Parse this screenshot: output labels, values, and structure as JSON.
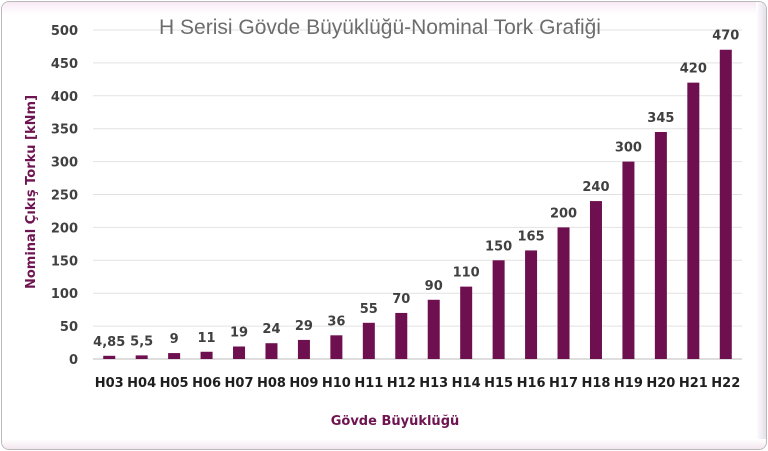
{
  "chart_data": {
    "type": "bar",
    "title": "H Serisi Gövde Büyüklüğü-Nominal Tork Grafiği",
    "xlabel": "Gövde Büyüklüğü",
    "ylabel": "Nominal Çıkış Torku [kNm]",
    "ylim": [
      0,
      500
    ],
    "yticks": [
      "0",
      "50",
      "100",
      "150",
      "200",
      "250",
      "300",
      "350",
      "400",
      "450",
      "500"
    ],
    "categories": [
      "H03",
      "H04",
      "H05",
      "H06",
      "H07",
      "H08",
      "H09",
      "H10",
      "H11",
      "H12",
      "H13",
      "H14",
      "H15",
      "H16",
      "H17",
      "H18",
      "H19",
      "H20",
      "H21",
      "H22"
    ],
    "values": [
      4.85,
      5.5,
      9,
      11,
      19,
      24,
      29,
      36,
      55,
      70,
      90,
      110,
      150,
      165,
      200,
      240,
      300,
      345,
      420,
      470
    ],
    "value_labels": [
      "4,85",
      "5,5",
      "9",
      "11",
      "19",
      "24",
      "29",
      "36",
      "55",
      "70",
      "90",
      "110",
      "150",
      "165",
      "200",
      "240",
      "300",
      "345",
      "420",
      "470"
    ],
    "bar_color": "#6e0f4f",
    "axis_title_color": "#6e1450",
    "grid": true,
    "legend": "none"
  }
}
